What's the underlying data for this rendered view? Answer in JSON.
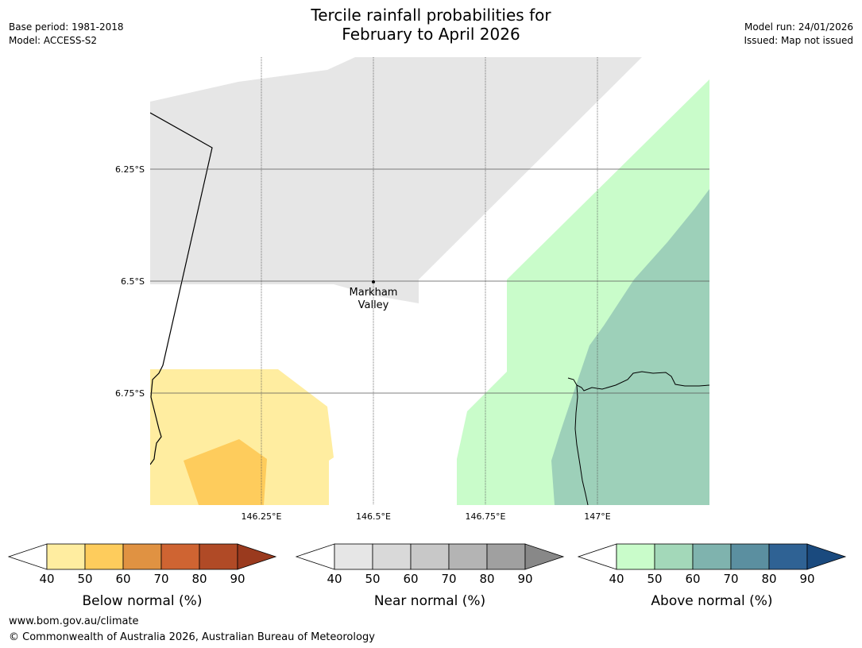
{
  "header": {
    "title_line1": "Tercile rainfall probabilities for",
    "title_line2": "February to April 2026",
    "base_period": "Base period: 1981-2018",
    "model": "Model: ACCESS-S2",
    "model_run": "Model run: 24/01/2026",
    "issued": "Issued: Map not issued"
  },
  "map": {
    "lat_labels": [
      "6.25°S",
      "6.5°S",
      "6.75°S"
    ],
    "lon_labels": [
      "146.25°E",
      "146.5°E",
      "146.75°E",
      "147°E"
    ],
    "place": {
      "name_line1": "Markham",
      "name_line2": "Valley"
    }
  },
  "legends": [
    {
      "title": "Below normal (%)",
      "ticks": [
        "40",
        "50",
        "60",
        "70",
        "80",
        "90"
      ],
      "colors": [
        "#ffeda0",
        "#fecc5c",
        "#e09242",
        "#cf6432",
        "#b04a26",
        "#9a3a1e"
      ]
    },
    {
      "title": "Near normal (%)",
      "ticks": [
        "40",
        "50",
        "60",
        "70",
        "80",
        "90"
      ],
      "colors": [
        "#e6e6e6",
        "#d9d9d9",
        "#c8c8c8",
        "#b4b4b4",
        "#a0a0a0",
        "#888888"
      ]
    },
    {
      "title": "Above normal (%)",
      "ticks": [
        "40",
        "50",
        "60",
        "70",
        "80",
        "90"
      ],
      "colors": [
        "#c9fcca",
        "#a3d8b9",
        "#7fb3ae",
        "#5b8fa0",
        "#2f6294",
        "#1a4a7e"
      ]
    }
  ],
  "footer": {
    "url": "www.bom.gov.au/climate",
    "copyright": "© Commonwealth of Australia 2026, Australian Bureau of Meteorology"
  }
}
